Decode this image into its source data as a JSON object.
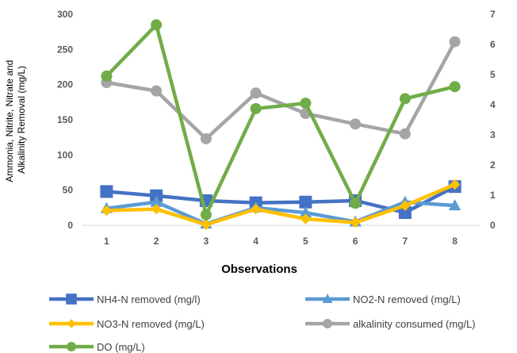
{
  "chart_data": {
    "type": "line",
    "x": [
      "1",
      "2",
      "3",
      "4",
      "5",
      "6",
      "7",
      "8"
    ],
    "xlabel": "Observations",
    "ylabel": "Ammonia, Nitrite, Nitrate and Alkalinity Removal (mg/L)",
    "ylabel_lines": [
      "Ammonia, Nitrite, Nitrate and",
      "Alkalinity Removal (mg/L)"
    ],
    "ylim": [
      0,
      300
    ],
    "yticks": [
      "0",
      "50",
      "100",
      "150",
      "200",
      "250",
      "300"
    ],
    "y2lim": [
      0,
      7
    ],
    "y2ticks": [
      "0",
      "1",
      "2",
      "3",
      "4",
      "5",
      "6",
      "7"
    ],
    "grid": false,
    "legend_position": "bottom",
    "series": [
      {
        "name": "NH4-N removed (mg/l)",
        "axis": "left",
        "marker": "square",
        "color": "#4472C4",
        "values": [
          48,
          42,
          35,
          32,
          33,
          35,
          18,
          55
        ]
      },
      {
        "name": "NO2-N removed (mg/L)",
        "axis": "left",
        "marker": "triangle",
        "color": "#5B9BD5",
        "values": [
          24,
          33,
          2,
          25,
          18,
          5,
          33,
          28
        ]
      },
      {
        "name": "NO3-N removed (mg/L)",
        "axis": "left",
        "marker": "diamond",
        "color": "#FFC000",
        "values": [
          21,
          23,
          1,
          23,
          9,
          4,
          28,
          58
        ]
      },
      {
        "name": "alkalinity consumed (mg/L)",
        "axis": "left",
        "marker": "circle",
        "color": "#A5A5A5",
        "values": [
          203,
          191,
          123,
          188,
          159,
          144,
          130,
          261
        ]
      },
      {
        "name": "DO (mg/L)",
        "axis": "right",
        "marker": "circle",
        "color": "#70AD47",
        "values": [
          4.95,
          6.65,
          0.35,
          3.87,
          4.05,
          0.73,
          4.2,
          4.6
        ]
      }
    ]
  }
}
